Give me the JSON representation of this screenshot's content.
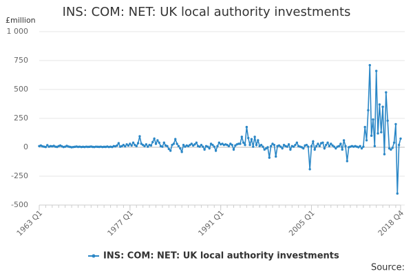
{
  "chart_data": {
    "type": "line",
    "title": "INS: COM: NET: UK local authority investments",
    "y_label": "£million",
    "source": "Source:",
    "categories": [
      "1963 Q1",
      null,
      null,
      null,
      null,
      null,
      null,
      null,
      null,
      null,
      null,
      null,
      null,
      null,
      null,
      null,
      null,
      null,
      null,
      null,
      null,
      null,
      null,
      null,
      null,
      null,
      null,
      null,
      null,
      null,
      null,
      null,
      null,
      null,
      null,
      null,
      null,
      null,
      null,
      null,
      null,
      null,
      null,
      null,
      null,
      null,
      null,
      null,
      null,
      null,
      null,
      null,
      null,
      null,
      null,
      null,
      "1977 Q1",
      null,
      null,
      null,
      null,
      null,
      null,
      null,
      null,
      null,
      null,
      null,
      null,
      null,
      null,
      null,
      null,
      null,
      null,
      null,
      null,
      null,
      null,
      null,
      null,
      null,
      null,
      null,
      null,
      null,
      null,
      null,
      null,
      null,
      null,
      null,
      null,
      null,
      null,
      null,
      null,
      null,
      null,
      null,
      null,
      null,
      null,
      null,
      null,
      null,
      null,
      null,
      null,
      null,
      null,
      null,
      "1991 Q1",
      null,
      null,
      null,
      null,
      null,
      null,
      null,
      null,
      null,
      null,
      null,
      null,
      null,
      null,
      null,
      null,
      null,
      null,
      null,
      null,
      null,
      null,
      null,
      null,
      null,
      null,
      null,
      null,
      null,
      null,
      null,
      null,
      null,
      null,
      null,
      null,
      null,
      null,
      null,
      null,
      null,
      null,
      null,
      null,
      null,
      null,
      null,
      null,
      null,
      null,
      null,
      null,
      null,
      null,
      null,
      "2005 Q1",
      null,
      null,
      null,
      null,
      null,
      null,
      null,
      null,
      null,
      null,
      null,
      null,
      null,
      null,
      null,
      null,
      null,
      null,
      null,
      null,
      null,
      null,
      null,
      null,
      null,
      null,
      null,
      null,
      null,
      null,
      null,
      null,
      null,
      null,
      null,
      null,
      null,
      null,
      null,
      null,
      null,
      null,
      null,
      null,
      null,
      null,
      null,
      null,
      null,
      null,
      null,
      null,
      null,
      null,
      "2018 Q4"
    ],
    "series": [
      {
        "name": "INS: COM: NET: UK local authority investments",
        "color": "#2b87c6",
        "values": [
          10,
          15,
          8,
          5,
          2,
          18,
          5,
          10,
          8,
          12,
          5,
          3,
          10,
          15,
          8,
          2,
          5,
          12,
          6,
          3,
          0,
          2,
          4,
          6,
          3,
          5,
          2,
          4,
          2,
          5,
          3,
          4,
          6,
          3,
          2,
          5,
          4,
          3,
          5,
          2,
          4,
          3,
          6,
          2,
          5,
          2,
          10,
          8,
          15,
          35,
          5,
          10,
          20,
          8,
          25,
          15,
          30,
          15,
          40,
          20,
          10,
          35,
          95,
          30,
          20,
          10,
          25,
          5,
          20,
          15,
          45,
          75,
          30,
          60,
          40,
          10,
          5,
          40,
          15,
          10,
          -15,
          -30,
          20,
          30,
          70,
          30,
          10,
          -10,
          -40,
          20,
          5,
          15,
          10,
          20,
          30,
          15,
          25,
          40,
          10,
          5,
          20,
          5,
          -20,
          10,
          5,
          -10,
          30,
          20,
          5,
          -30,
          10,
          40,
          25,
          30,
          20,
          25,
          20,
          10,
          30,
          20,
          -20,
          15,
          25,
          30,
          30,
          90,
          40,
          20,
          175,
          80,
          20,
          70,
          5,
          90,
          20,
          60,
          10,
          20,
          5,
          -20,
          -10,
          0,
          -90,
          10,
          30,
          20,
          -80,
          10,
          15,
          5,
          -10,
          20,
          10,
          5,
          25,
          -20,
          10,
          5,
          20,
          40,
          10,
          5,
          0,
          -10,
          15,
          20,
          5,
          -190,
          10,
          50,
          -20,
          10,
          30,
          10,
          35,
          40,
          -10,
          20,
          40,
          10,
          30,
          15,
          5,
          -10,
          5,
          10,
          30,
          -20,
          60,
          10,
          -120,
          0,
          5,
          10,
          5,
          10,
          5,
          0,
          10,
          -10,
          5,
          175,
          60,
          320,
          710,
          100,
          240,
          10,
          660,
          120,
          370,
          130,
          350,
          -60,
          475,
          230,
          -10,
          -20,
          -5,
          40,
          200,
          -400,
          20,
          75
        ]
      }
    ],
    "ylim": [
      -500,
      1000
    ],
    "yticks": [
      {
        "value": 1000,
        "label": "1 000"
      },
      750,
      500,
      250,
      0,
      -250,
      -500
    ],
    "grid": true,
    "legend": "bottom"
  }
}
